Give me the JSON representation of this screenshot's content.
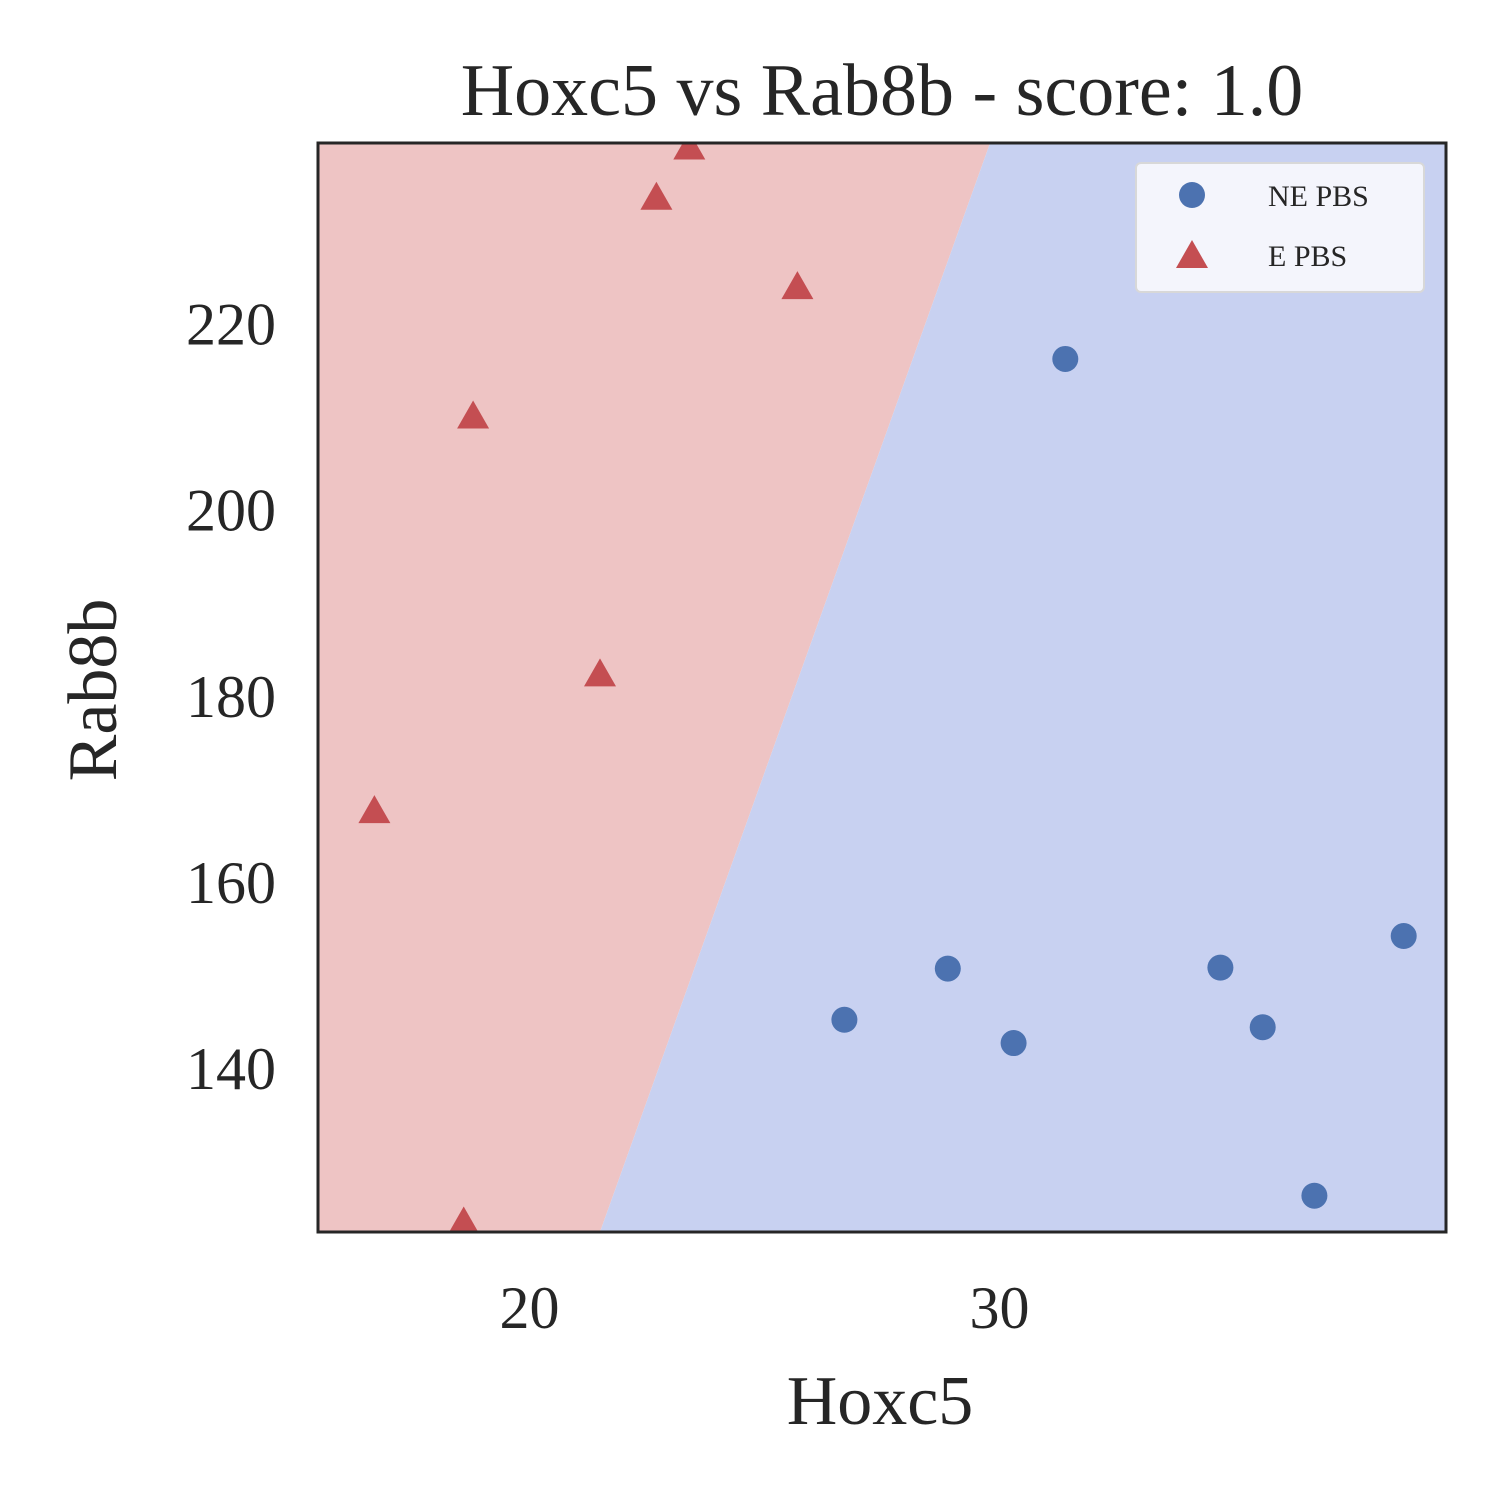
{
  "chart_data": {
    "type": "scatter",
    "title": "Hoxc5 vs Rab8b - score: 1.0",
    "xlabel": "Hoxc5",
    "ylabel": "Rab8b",
    "xlim": [
      15.5,
      39.5
    ],
    "ylim": [
      122.5,
      239.5
    ],
    "x_ticks": [
      20,
      30
    ],
    "y_ticks": [
      140,
      160,
      180,
      200,
      220
    ],
    "grid": false,
    "legend_position": "top-right",
    "decision_regions": {
      "boundary_line": [
        [
          21.5,
          122.5
        ],
        [
          29.8,
          239.5
        ]
      ],
      "left_region": {
        "class": "E PBS",
        "color": "#eec4c4"
      },
      "right_region": {
        "class": "NE PBS",
        "color": "#c8d1f1"
      }
    },
    "series": [
      {
        "name": "NE PBS",
        "marker": "circle",
        "color": "#4c72b0",
        "points": [
          {
            "x": 31.4,
            "y": 216.3
          },
          {
            "x": 28.9,
            "y": 150.8
          },
          {
            "x": 26.7,
            "y": 145.3
          },
          {
            "x": 30.3,
            "y": 142.8
          },
          {
            "x": 34.7,
            "y": 150.9
          },
          {
            "x": 35.6,
            "y": 144.5
          },
          {
            "x": 38.6,
            "y": 154.3
          },
          {
            "x": 36.7,
            "y": 126.4
          }
        ]
      },
      {
        "name": "E PBS",
        "marker": "triangle",
        "color": "#c44e52",
        "points": [
          {
            "x": 23.4,
            "y": 238.8
          },
          {
            "x": 22.7,
            "y": 233.4
          },
          {
            "x": 25.7,
            "y": 223.8
          },
          {
            "x": 18.8,
            "y": 209.9
          },
          {
            "x": 21.5,
            "y": 182.2
          },
          {
            "x": 16.7,
            "y": 167.5
          },
          {
            "x": 18.6,
            "y": 123.3
          }
        ]
      }
    ]
  }
}
